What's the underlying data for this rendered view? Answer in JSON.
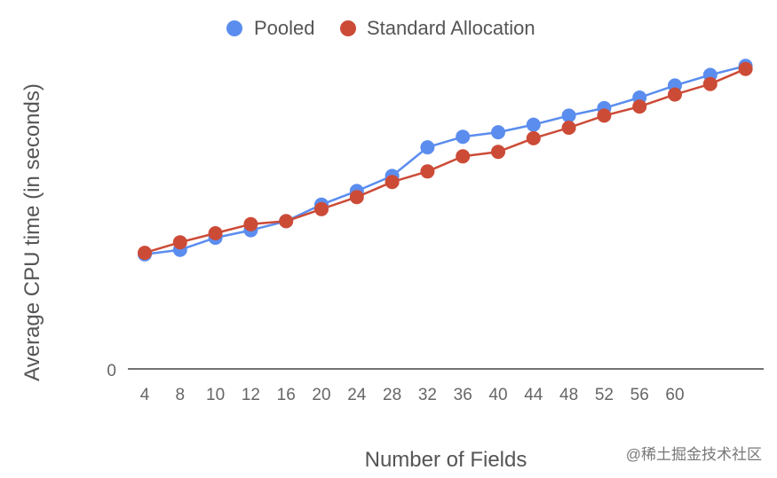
{
  "chart_data": {
    "type": "line",
    "xlabel": "Number of Fields",
    "ylabel": "Average CPU time (in seconds)",
    "y_zero_label": "0",
    "legend_position": "top-center",
    "grid": false,
    "categories": [
      "4",
      "8",
      "10",
      "12",
      "16",
      "20",
      "24",
      "28",
      "32",
      "36",
      "40",
      "44",
      "48",
      "52",
      "56",
      "60",
      "",
      ""
    ],
    "ylim": [
      0,
      100
    ],
    "series": [
      {
        "name": "Pooled",
        "color": "#5b8def",
        "values": [
          38.0,
          39.5,
          43.5,
          46.0,
          49.0,
          54.5,
          59.0,
          64.0,
          73.5,
          77.0,
          78.5,
          81.0,
          84.0,
          86.5,
          90.0,
          94.0,
          97.5,
          100.5
        ]
      },
      {
        "name": "Standard Allocation",
        "color": "#cc4b37",
        "values": [
          38.5,
          42.0,
          45.0,
          48.0,
          49.0,
          53.0,
          57.0,
          62.0,
          65.5,
          70.5,
          72.0,
          76.5,
          80.0,
          84.0,
          87.0,
          91.0,
          94.5,
          99.5
        ]
      }
    ]
  },
  "watermark": "@稀土掘金技术社区"
}
